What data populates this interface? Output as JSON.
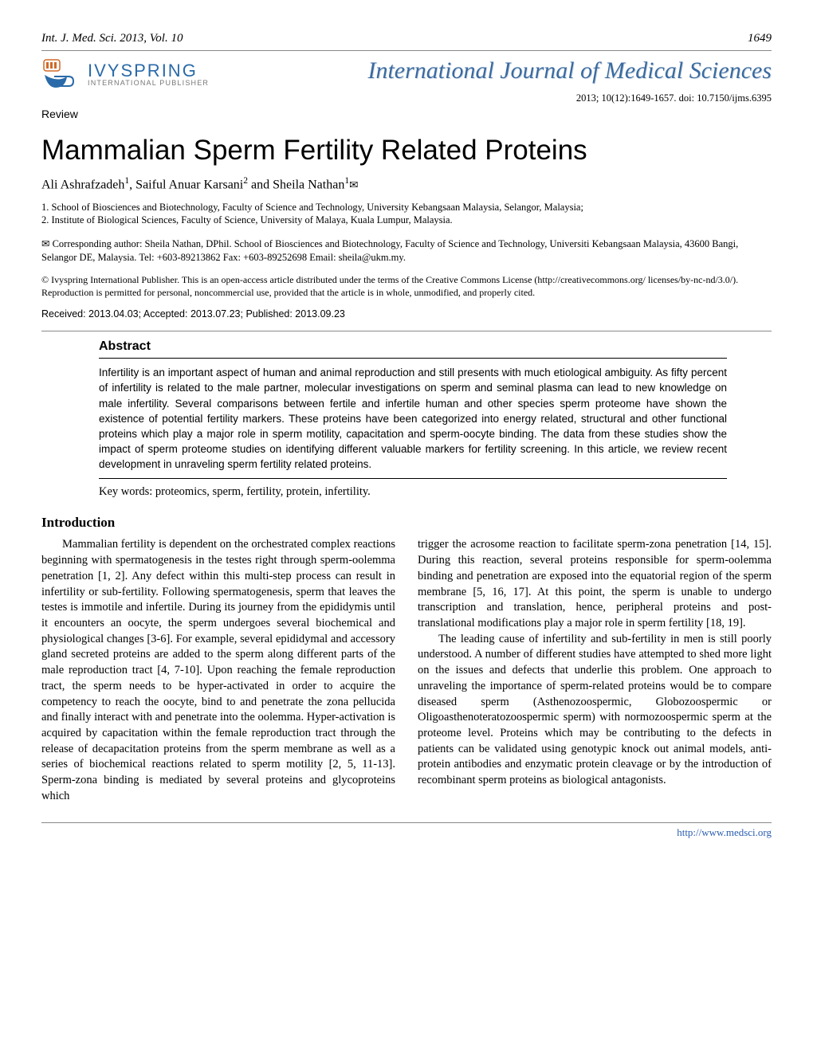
{
  "header": {
    "running_left": "Int. J. Med. Sci. 2013, Vol. 10",
    "running_right": "1649"
  },
  "logo": {
    "brand": "IVYSPRING",
    "subbrand": "INTERNATIONAL PUBLISHER",
    "fill": "#2a6aa8",
    "accent": "#d06a2a"
  },
  "journal": {
    "title": "International Journal of Medical Sciences",
    "meta": "2013; 10(12):1649-1657. doi: 10.7150/ijms.6395"
  },
  "article": {
    "type": "Review",
    "title": "Mammalian Sperm Fertility Related Proteins",
    "authors_html": "Ali Ashrafzadeh<sup>1</sup>, Saiful Anuar Karsani<sup>2</sup> and Sheila Nathan<sup>1</sup><span class='envelope'>✉</span>",
    "affiliations": [
      "1.   School of Biosciences and Biotechnology, Faculty of Science and Technology, University Kebangsaan Malaysia, Selangor, Malaysia;",
      "2.   Institute of Biological Sciences, Faculty of Science, University of Malaya, Kuala Lumpur, Malaysia."
    ],
    "corresponding": "✉ Corresponding author: Sheila Nathan, DPhil. School of Biosciences and Biotechnology, Faculty of Science and Technology, Universiti Kebangsaan Malaysia, 43600 Bangi, Selangor DE, Malaysia. Tel: +603-89213862 Fax: +603-89252698 Email: sheila@ukm.my.",
    "license": "© Ivyspring International Publisher. This is an open-access article distributed under the terms of the Creative Commons License (http://creativecommons.org/ licenses/by-nc-nd/3.0/). Reproduction is permitted for personal, noncommercial use, provided that the article is in whole, unmodified, and properly cited.",
    "dates": "Received: 2013.04.03; Accepted: 2013.07.23; Published: 2013.09.23"
  },
  "abstract": {
    "heading": "Abstract",
    "text": "Infertility is an important aspect of human and animal reproduction and still presents with much etiological ambiguity. As fifty percent of infertility is related to the male partner, molecular investigations on sperm and seminal plasma can lead to new knowledge on male infertility. Several comparisons between fertile and infertile human and other species sperm proteome have shown the existence of potential fertility markers. These proteins have been categorized into energy related, structural and other functional proteins which play a major role in sperm motility, capacitation and sperm-oocyte binding. The data from these studies show the impact of sperm proteome studies on identifying different valuable markers for fertility screening. In this article, we review recent development in unraveling sperm fertility related proteins.",
    "keywords": "Key words: proteomics, sperm, fertility, protein, infertility."
  },
  "body": {
    "section_heading": "Introduction",
    "col1": "Mammalian fertility is dependent on the orchestrated complex reactions beginning with spermatogenesis in the testes right through sperm-oolemma penetration [1, 2]. Any defect within this multi-step process can result in infertility or sub-fertility. Following spermatogenesis, sperm that leaves the testes is immotile and infertile. During its journey from the epididymis until it encounters an oocyte, the sperm undergoes several biochemical and physiological changes [3-6]. For example, several epididymal and accessory gland secreted proteins are added to the sperm along different parts of the male reproduction tract [4, 7-10]. Upon reaching the female reproduction tract, the sperm needs to be hyper-activated in order to acquire the competency to reach the oocyte, bind to and penetrate the zona pellucida and finally interact with and penetrate into the oolemma. Hyper-activation is acquired by capacitation within the female reproduction tract through the release of decapacitation proteins from the sperm membrane as well as a series of biochemical reactions related to sperm motility [2, 5, 11-13]. Sperm-zona binding is mediated by several proteins and glycoproteins which",
    "col2_p1": "trigger the acrosome reaction to facilitate sperm-zona penetration [14, 15]. During this reaction, several proteins responsible for sperm-oolemma binding and penetration are exposed into the equatorial region of the sperm membrane [5, 16, 17]. At this point, the sperm is unable to undergo transcription and translation, hence, peripheral proteins and post-translational modifications play a major role in sperm fertility [18, 19].",
    "col2_p2": "The leading cause of infertility and sub-fertility in men is still poorly understood. A number of different studies have attempted to shed more light on the issues and defects that underlie this problem. One approach to unraveling the importance of sperm-related proteins would be to compare diseased sperm (Asthenozoospermic, Globozoospermic or Oligoasthenoteratozoospermic sperm) with normozoospermic sperm at the proteome level. Proteins which may be contributing to the defects in patients can be validated using genotypic knock out animal models, anti-protein antibodies and enzymatic protein cleavage or by the introduction of recombinant sperm proteins as biological antagonists."
  },
  "footer": {
    "url": "http://www.medsci.org"
  },
  "colors": {
    "journal_title": "#3a6aa0",
    "link": "#2a5db0",
    "rule": "#888888"
  }
}
